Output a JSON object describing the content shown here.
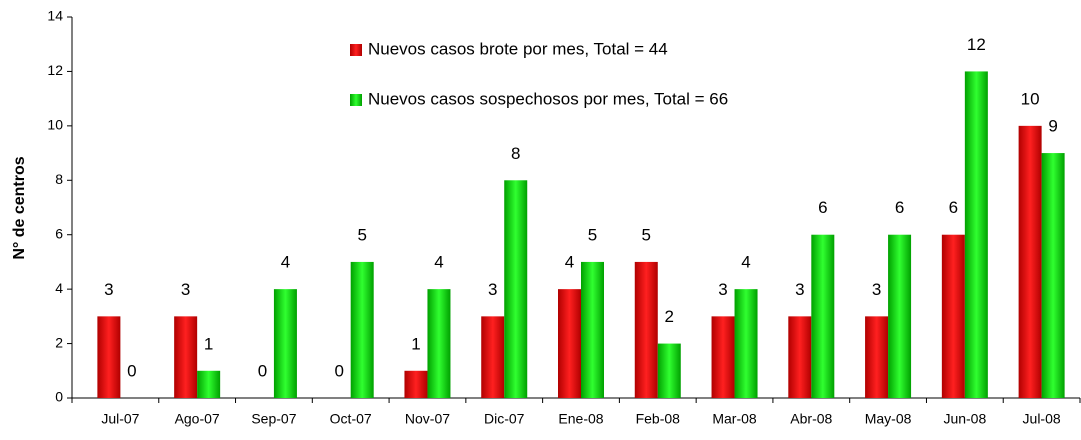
{
  "chart_data": {
    "type": "bar",
    "y_label": "N° de centros",
    "categories": [
      "Jul-07",
      "Ago-07",
      "Sep-07",
      "Oct-07",
      "Nov-07",
      "Dic-07",
      "Ene-08",
      "Feb-08",
      "Mar-08",
      "Abr-08",
      "May-08",
      "Jun-08",
      "Jul-08"
    ],
    "series": [
      {
        "name": "Nuevos casos brote por mes, Total = 44",
        "color": "#e00000",
        "values": [
          3,
          3,
          0,
          0,
          1,
          3,
          4,
          5,
          3,
          3,
          3,
          6,
          10
        ]
      },
      {
        "name": "Nuevos casos sospechosos por mes, Total = 66",
        "color": "#00d000",
        "values": [
          0,
          1,
          4,
          5,
          4,
          8,
          5,
          2,
          4,
          6,
          6,
          12,
          9
        ]
      }
    ],
    "ylim": [
      0,
      14
    ],
    "yticks": [
      0,
      2,
      4,
      6,
      8,
      10,
      12,
      14
    ],
    "grid": false,
    "legend": "top"
  }
}
